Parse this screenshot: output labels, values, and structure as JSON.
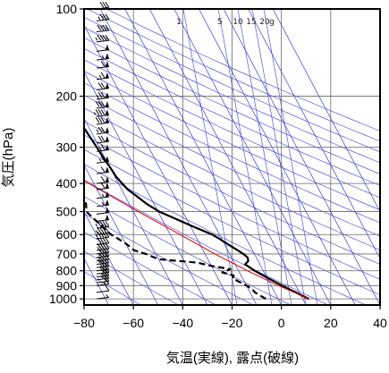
{
  "chart_data": {
    "type": "skew-t",
    "xlabel": "気温(実線), 露点(破線)",
    "ylabel": "気圧(hPa)",
    "x_ticks": [
      "−80",
      "−60",
      "−40",
      "−20",
      "0",
      "20",
      "40"
    ],
    "x_tick_values": [
      -80,
      -60,
      -40,
      -20,
      0,
      20,
      40
    ],
    "xlim": [
      -80,
      40
    ],
    "y_ticks": [
      "100",
      "200",
      "300",
      "400",
      "500",
      "600",
      "700",
      "800",
      "900",
      "1000"
    ],
    "y_tick_values": [
      100,
      200,
      300,
      400,
      500,
      600,
      700,
      800,
      900,
      1000
    ],
    "ylim": [
      1050,
      100
    ],
    "y_scale": "log",
    "mixing_ratio_labels": [
      "1",
      "5",
      "10",
      "15",
      "20",
      "g"
    ],
    "grid": true,
    "colors": {
      "temperature": "#000000",
      "dewpoint": "#000000",
      "parcel": "#d40000",
      "isotherms_and_adiabats": "#3b3bd6",
      "grid": "#666666"
    },
    "series": [
      {
        "name": "気温(実線)",
        "style": "solid",
        "points": [
          {
            "p": 1000,
            "t": 12.5
          },
          {
            "p": 975,
            "t": 10.5
          },
          {
            "p": 950,
            "t": 8.5
          },
          {
            "p": 925,
            "t": 6.5
          },
          {
            "p": 900,
            "t": 4.5
          },
          {
            "p": 875,
            "t": 2.5
          },
          {
            "p": 850,
            "t": 0.5
          },
          {
            "p": 825,
            "t": -1.5
          },
          {
            "p": 800,
            "t": -3.5
          },
          {
            "p": 775,
            "t": -5.0
          },
          {
            "p": 760,
            "t": -6.0
          },
          {
            "p": 740,
            "t": -4.0
          },
          {
            "p": 720,
            "t": -3.5
          },
          {
            "p": 700,
            "t": -4.5
          },
          {
            "p": 680,
            "t": -6.0
          },
          {
            "p": 650,
            "t": -8.5
          },
          {
            "p": 620,
            "t": -11.0
          },
          {
            "p": 600,
            "t": -13.0
          },
          {
            "p": 560,
            "t": -19.5
          },
          {
            "p": 520,
            "t": -26.0
          },
          {
            "p": 500,
            "t": -29.5
          },
          {
            "p": 470,
            "t": -33.0
          },
          {
            "p": 440,
            "t": -35.5
          },
          {
            "p": 420,
            "t": -37.5
          },
          {
            "p": 400,
            "t": -38.5
          },
          {
            "p": 380,
            "t": -39.5
          },
          {
            "p": 350,
            "t": -40.0
          },
          {
            "p": 330,
            "t": -40.5
          },
          {
            "p": 300,
            "t": -41.0
          },
          {
            "p": 280,
            "t": -41.5
          },
          {
            "p": 260,
            "t": -42.0
          },
          {
            "p": 240,
            "t": -45.0
          },
          {
            "p": 220,
            "t": -48.0
          },
          {
            "p": 200,
            "t": -52.0
          },
          {
            "p": 185,
            "t": -55.5
          },
          {
            "p": 175,
            "t": -55.5
          },
          {
            "p": 160,
            "t": -58.0
          },
          {
            "p": 150,
            "t": -60.0
          },
          {
            "p": 140,
            "t": -61.0
          },
          {
            "p": 130,
            "t": -62.0
          },
          {
            "p": 120,
            "t": -63.5
          },
          {
            "p": 110,
            "t": -65.5
          },
          {
            "p": 105,
            "t": -68.0
          },
          {
            "p": 100,
            "t": -70.0
          }
        ]
      },
      {
        "name": "露点(破線)",
        "style": "dashed",
        "points": [
          {
            "p": 1000,
            "t": -5.0
          },
          {
            "p": 975,
            "t": -6.5
          },
          {
            "p": 950,
            "t": -8.0
          },
          {
            "p": 925,
            "t": -8.5
          },
          {
            "p": 900,
            "t": -10.0
          },
          {
            "p": 875,
            "t": -12.0
          },
          {
            "p": 850,
            "t": -14.0
          },
          {
            "p": 830,
            "t": -13.0
          },
          {
            "p": 810,
            "t": -17.0
          },
          {
            "p": 790,
            "t": -13.0
          },
          {
            "p": 770,
            "t": -20.0
          },
          {
            "p": 750,
            "t": -25.0
          },
          {
            "p": 730,
            "t": -40.0
          },
          {
            "p": 700,
            "t": -44.0
          },
          {
            "p": 680,
            "t": -48.0
          },
          {
            "p": 650,
            "t": -49.5
          },
          {
            "p": 620,
            "t": -52.0
          },
          {
            "p": 600,
            "t": -54.0
          },
          {
            "p": 560,
            "t": -56.0
          },
          {
            "p": 520,
            "t": -58.0
          },
          {
            "p": 500,
            "t": -59.0
          },
          {
            "p": 470,
            "t": -57.5
          },
          {
            "p": 440,
            "t": -57.5
          },
          {
            "p": 420,
            "t": -58.5
          },
          {
            "p": 400,
            "t": -59.5
          },
          {
            "p": 380,
            "t": -61.0
          },
          {
            "p": 360,
            "t": -65.0
          },
          {
            "p": 340,
            "t": -67.0
          },
          {
            "p": 320,
            "t": -69.0
          },
          {
            "p": 300,
            "t": -72.0
          },
          {
            "p": 285,
            "t": -75.0
          },
          {
            "p": 275,
            "t": -78.0
          },
          {
            "p": 262,
            "t": -74.0
          },
          {
            "p": 255,
            "t": -76.0
          }
        ]
      },
      {
        "name": "parcel",
        "style": "solid",
        "points": [
          {
            "p": 1000,
            "t": 12.5
          },
          {
            "p": 900,
            "t": 3.0
          },
          {
            "p": 800,
            "t": -6.5
          },
          {
            "p": 700,
            "t": -16.0
          },
          {
            "p": 600,
            "t": -26.0
          },
          {
            "p": 500,
            "t": -38.0
          },
          {
            "p": 400,
            "t": -52.0
          },
          {
            "p": 300,
            "t": -68.0
          },
          {
            "p": 255,
            "t": -77.0
          },
          {
            "p": 240,
            "t": -80.0
          }
        ]
      }
    ],
    "wind_barbs": {
      "levels_hPa": [
        1000,
        950,
        900,
        880,
        860,
        840,
        820,
        800,
        780,
        760,
        740,
        720,
        700,
        680,
        650,
        620,
        600,
        570,
        540,
        510,
        480,
        450,
        420,
        400,
        370,
        340,
        310,
        290,
        270,
        250,
        235,
        220,
        205,
        190,
        175,
        160,
        150,
        140,
        130,
        120,
        110,
        100
      ],
      "speeds_kt": [
        5,
        10,
        15,
        20,
        25,
        25,
        30,
        30,
        30,
        35,
        35,
        35,
        40,
        40,
        40,
        45,
        45,
        45,
        50,
        50,
        55,
        55,
        60,
        60,
        60,
        65,
        65,
        70,
        75,
        80,
        85,
        80,
        75,
        70,
        65,
        60,
        55,
        50,
        45,
        40,
        35,
        30
      ]
    }
  }
}
